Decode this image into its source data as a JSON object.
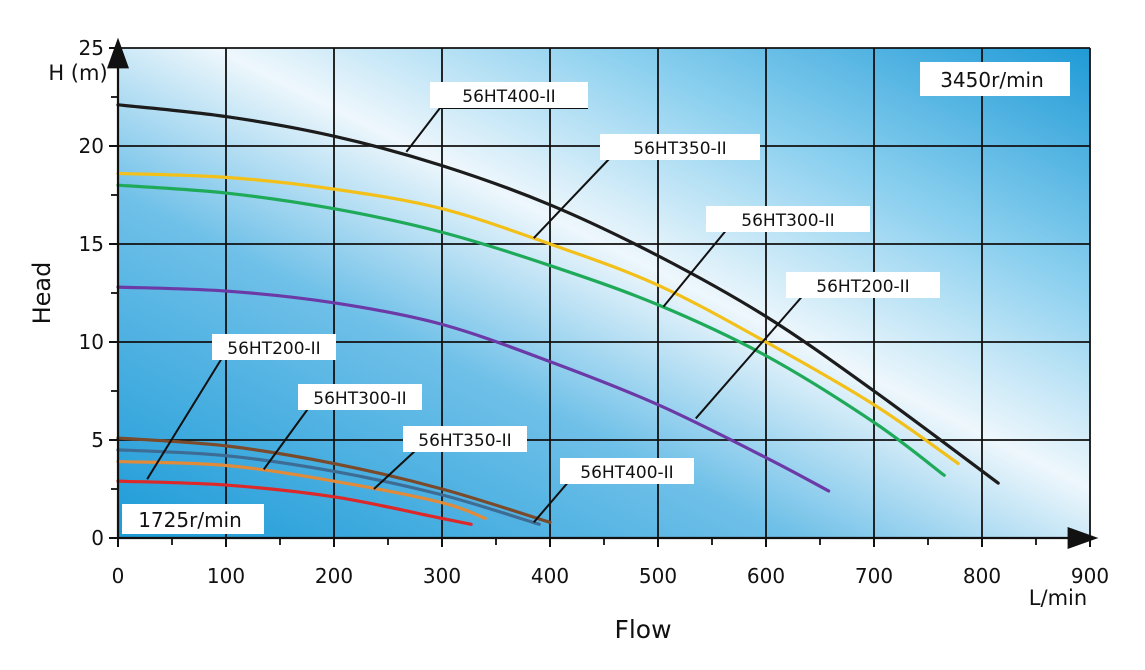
{
  "chart_data": {
    "type": "line",
    "xlabel": "Flow",
    "x_unit": "L/min",
    "ylabel": "Head",
    "y_unit": "H (m)",
    "xlim": [
      0,
      900
    ],
    "ylim": [
      0,
      25
    ],
    "x_ticks": [
      0,
      100,
      200,
      300,
      400,
      500,
      600,
      700,
      800,
      900
    ],
    "y_ticks": [
      0,
      5,
      10,
      15,
      20,
      25
    ],
    "grid": true,
    "annotations": [
      {
        "text": "3450r/min",
        "group": "3450"
      },
      {
        "text": "1725r/min",
        "group": "1725"
      }
    ],
    "series": [
      {
        "name": "56HT400-II",
        "speed": "3450r/min",
        "color": "#1c1c1c",
        "x": [
          0,
          100,
          200,
          300,
          400,
          500,
          600,
          700,
          815
        ],
        "y": [
          22.1,
          21.5,
          20.5,
          19.0,
          17.0,
          14.4,
          11.3,
          7.5,
          2.8
        ]
      },
      {
        "name": "56HT350-II",
        "speed": "3450r/min",
        "color": "#f3c019",
        "x": [
          0,
          100,
          200,
          300,
          400,
          500,
          600,
          700,
          778
        ],
        "y": [
          18.6,
          18.4,
          17.8,
          16.8,
          15.0,
          12.9,
          10.0,
          6.8,
          3.8
        ]
      },
      {
        "name": "56HT300-II",
        "speed": "3450r/min",
        "color": "#1faa5a",
        "x": [
          0,
          100,
          200,
          300,
          400,
          500,
          600,
          700,
          765
        ],
        "y": [
          18.0,
          17.6,
          16.8,
          15.6,
          13.9,
          11.9,
          9.3,
          5.9,
          3.2
        ]
      },
      {
        "name": "56HT200-II",
        "speed": "3450r/min",
        "color": "#6b3aa6",
        "x": [
          0,
          100,
          200,
          300,
          400,
          500,
          600,
          658
        ],
        "y": [
          12.8,
          12.6,
          12.0,
          10.9,
          9.0,
          6.8,
          4.1,
          2.4
        ]
      },
      {
        "name": "56HT400-II",
        "speed": "1725r/min",
        "color": "#7a4a2a",
        "x": [
          0,
          100,
          200,
          300,
          400
        ],
        "y": [
          5.1,
          4.7,
          3.8,
          2.5,
          0.8
        ]
      },
      {
        "name": "56HT350-II",
        "speed": "1725r/min",
        "color": "#3d6c95",
        "x": [
          0,
          100,
          200,
          300,
          390
        ],
        "y": [
          4.5,
          4.2,
          3.4,
          2.2,
          0.7
        ]
      },
      {
        "name": "56HT300-II",
        "speed": "1725r/min",
        "color": "#e08a3a",
        "x": [
          0,
          100,
          200,
          300,
          340
        ],
        "y": [
          3.9,
          3.7,
          2.9,
          1.8,
          1.0
        ]
      },
      {
        "name": "56HT200-II",
        "speed": "1725r/min",
        "color": "#dc2828",
        "x": [
          0,
          100,
          200,
          300,
          327
        ],
        "y": [
          2.9,
          2.7,
          2.1,
          1.0,
          0.7
        ]
      }
    ],
    "callouts": [
      {
        "text": "56HT400-II",
        "point": [
          267,
          19.7
        ],
        "series": 0
      },
      {
        "text": "56HT350-II",
        "point": [
          385,
          15.3
        ],
        "series": 1
      },
      {
        "text": "56HT300-II",
        "point": [
          505,
          11.8
        ],
        "series": 2
      },
      {
        "text": "56HT200-II",
        "point": [
          535,
          6.1
        ],
        "series": 3
      },
      {
        "text": "56HT200-II",
        "point": [
          27,
          3.0
        ],
        "series": 7
      },
      {
        "text": "56HT300-II",
        "point": [
          135,
          3.5
        ],
        "series": 6
      },
      {
        "text": "56HT350-II",
        "point": [
          237,
          2.5
        ],
        "series": 5
      },
      {
        "text": "56HT400-II",
        "point": [
          385,
          0.8
        ],
        "series": 4
      }
    ]
  }
}
